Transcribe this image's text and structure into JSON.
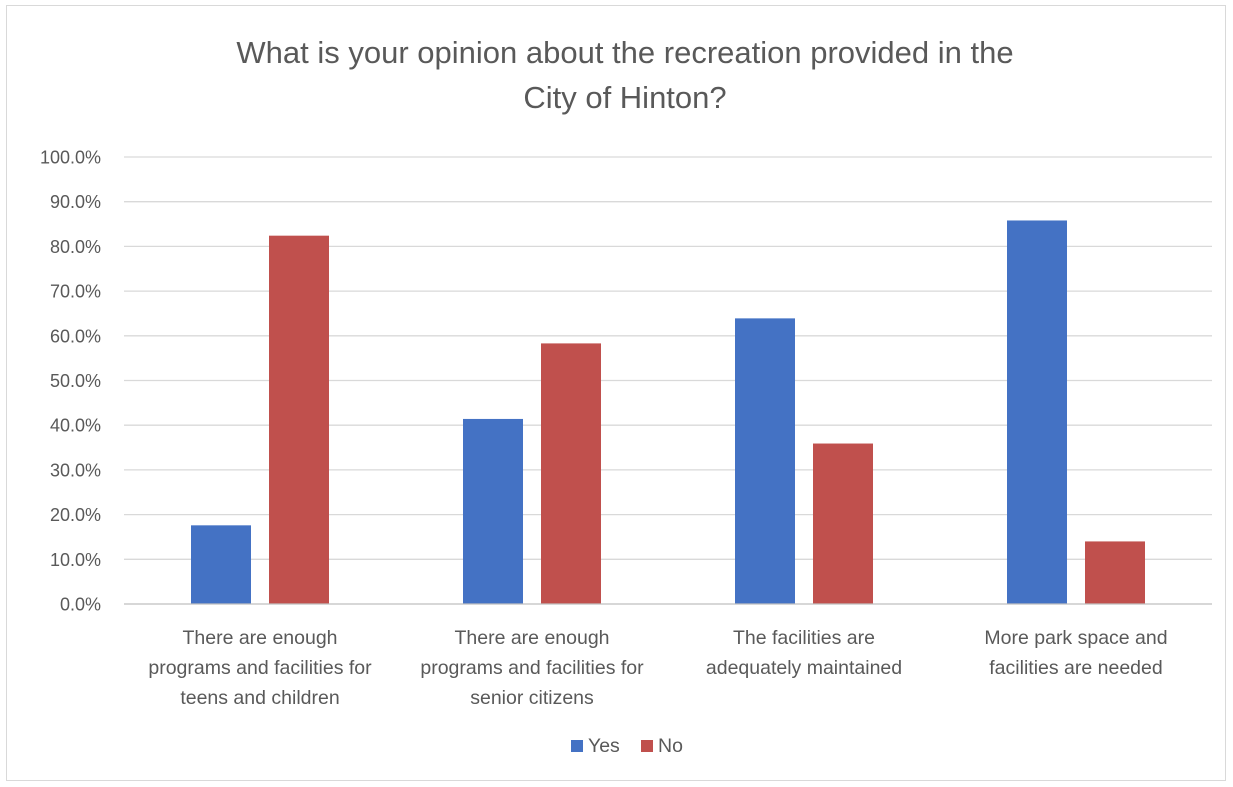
{
  "chart_data": {
    "type": "bar",
    "title": "What is your opinion about the recreation provided in the City of Hinton?",
    "title_lines": [
      "What is your opinion about the recreation provided in the",
      "City of Hinton?"
    ],
    "categories": [
      "There are enough programs and facilities for teens and children",
      "There are enough programs and facilities for senior citizens",
      "The facilities are adequately maintained",
      "More park space and facilities are needed"
    ],
    "category_lines": [
      [
        "There are enough",
        "programs and facilities for",
        "teens and children"
      ],
      [
        "There are enough",
        "programs and facilities for",
        "senior citizens"
      ],
      [
        "The facilities are",
        "adequately maintained"
      ],
      [
        "More park space and",
        "facilities are needed"
      ]
    ],
    "series": [
      {
        "name": "Yes",
        "color": "#4472c4",
        "values": [
          17.6,
          41.4,
          63.9,
          85.8
        ]
      },
      {
        "name": "No",
        "color": "#c0504d",
        "values": [
          82.4,
          58.3,
          35.9,
          14.0
        ]
      }
    ],
    "ylim": [
      0,
      100
    ],
    "y_ticks": [
      "0.0%",
      "10.0%",
      "20.0%",
      "30.0%",
      "40.0%",
      "50.0%",
      "60.0%",
      "70.0%",
      "80.0%",
      "90.0%",
      "100.0%"
    ],
    "xlabel": "",
    "ylabel": "",
    "grid": true,
    "legend": "bottom"
  }
}
